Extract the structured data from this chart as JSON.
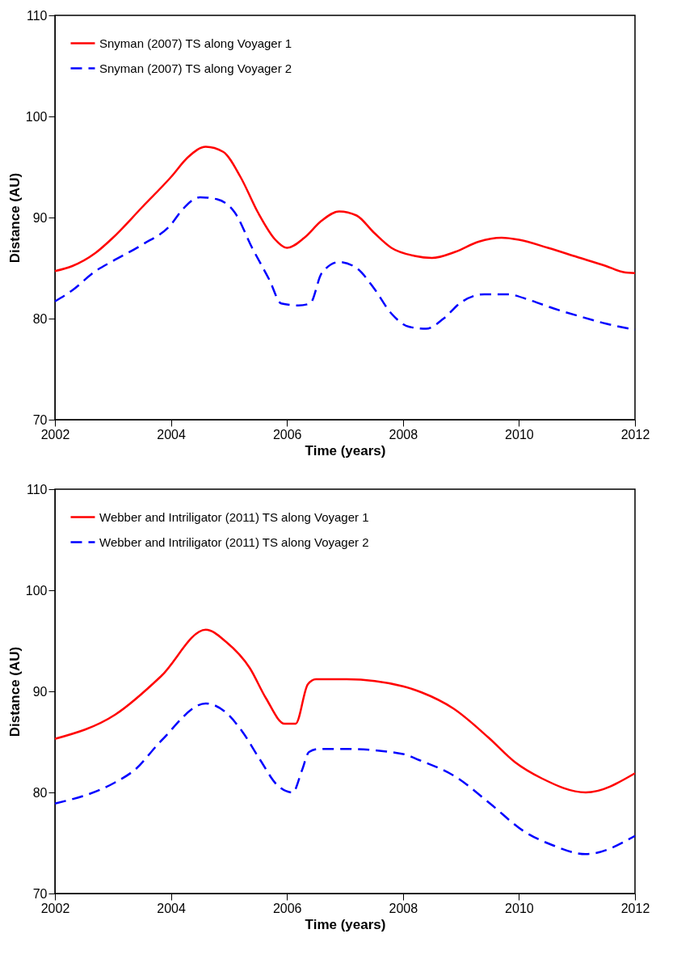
{
  "chart_data": [
    {
      "type": "line",
      "xlabel": "Time (years)",
      "ylabel": "Distance (AU)",
      "xlim": [
        2002,
        2012
      ],
      "ylim": [
        70,
        110
      ],
      "xticks": [
        2002,
        2004,
        2006,
        2008,
        2010,
        2012
      ],
      "yticks": [
        70,
        80,
        90,
        100,
        110
      ],
      "grid": false,
      "legend": "top left",
      "series": [
        {
          "name": "Snyman (2007) TS along Voyager 1",
          "color": "#ff0000",
          "line_style": "solid",
          "x": [
            2002,
            2002.3,
            2002.7,
            2003,
            2003.5,
            2004,
            2004.3,
            2004.6,
            2004.9,
            2005.2,
            2005.5,
            2005.8,
            2006,
            2006.3,
            2006.6,
            2006.9,
            2007.2,
            2007.5,
            2007.8,
            2008.2,
            2008.5,
            2008.9,
            2009.3,
            2009.7,
            2010,
            2010.5,
            2011,
            2011.5,
            2011.8,
            2012
          ],
          "values": [
            84.7,
            85.2,
            86.5,
            88,
            91,
            94,
            96,
            97,
            96.5,
            94,
            90.5,
            87.8,
            87,
            88,
            89.7,
            90.6,
            90.2,
            88.5,
            87,
            86.2,
            86,
            86.6,
            87.6,
            88,
            87.8,
            87,
            86.1,
            85.2,
            84.6,
            84.5
          ]
        },
        {
          "name": "Snyman (2007) TS along Voyager 2",
          "color": "#0000ff",
          "line_style": "dashed",
          "x": [
            2002,
            2002.3,
            2002.7,
            2003,
            2003.5,
            2004,
            2004.2,
            2004.5,
            2004.8,
            2005.1,
            2005.4,
            2005.7,
            2005.9,
            2006.2,
            2006.4,
            2006.6,
            2006.9,
            2007.2,
            2007.5,
            2007.8,
            2008.1,
            2008.4,
            2008.7,
            2009,
            2009.4,
            2009.8,
            2010.2,
            2010.6,
            2011,
            2011.5,
            2012
          ],
          "values": [
            81.7,
            82.8,
            84.7,
            85.7,
            87.3,
            89.3,
            90.8,
            92,
            91.8,
            90.5,
            87,
            83.8,
            81.5,
            81.3,
            81.5,
            84.5,
            85.6,
            85,
            83,
            80.5,
            79.2,
            79,
            80,
            81.6,
            82.4,
            82.4,
            81.8,
            81,
            80.3,
            79.5,
            78.9
          ]
        }
      ]
    },
    {
      "type": "line",
      "xlabel": "Time (years)",
      "ylabel": "Distance (AU)",
      "xlim": [
        2002,
        2012
      ],
      "ylim": [
        70,
        110
      ],
      "xticks": [
        2002,
        2004,
        2006,
        2008,
        2010,
        2012
      ],
      "yticks": [
        70,
        80,
        90,
        100,
        110
      ],
      "grid": false,
      "legend": "top left",
      "series": [
        {
          "name": "Webber and Intriligator (2011) TS along Voyager 1",
          "color": "#ff0000",
          "line_style": "solid",
          "x": [
            2002,
            2003.04,
            2003.83,
            2004.6,
            2004.95,
            2005.36,
            2005.64,
            2005.96,
            2006.15,
            2006.36,
            2006.5,
            2007.03,
            2008,
            2008.32,
            2008.87,
            2009.48,
            2009.93,
            2010.39,
            2011.15,
            2012
          ],
          "values": [
            85.3,
            87.7,
            91.5,
            96.1,
            94.9,
            92.3,
            89.3,
            86.8,
            86.8,
            90.7,
            91.2,
            91.2,
            90.5,
            89.9,
            88.3,
            85.4,
            83,
            81.4,
            80,
            81.9
          ]
        },
        {
          "name": "Webber and Intriligator (2011) TS along Voyager 2",
          "color": "#0000ff",
          "line_style": "dashed",
          "x": [
            2002,
            2003.04,
            2003.37,
            2003.83,
            2004.6,
            2004.95,
            2005.22,
            2005.54,
            2005.82,
            2006.1,
            2006.26,
            2006.38,
            2006.55,
            2007.03,
            2008,
            2008.28,
            2008.92,
            2009.48,
            2010.1,
            2010.57,
            2011.15,
            2012
          ],
          "values": [
            78.9,
            81,
            82.2,
            85.1,
            88.8,
            87.9,
            86.1,
            83.2,
            80.8,
            80,
            82.2,
            84,
            84.3,
            84.3,
            83.8,
            83.2,
            81.5,
            79,
            76.1,
            74.8,
            73.9,
            75.7
          ]
        }
      ]
    }
  ]
}
